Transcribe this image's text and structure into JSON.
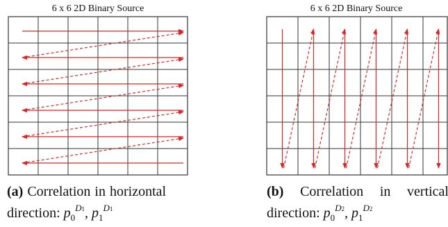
{
  "panel_a": {
    "title": "6 x 6 2D Binary Source",
    "caption_letter": "(a)",
    "caption_words_line1": [
      "Correlation",
      "in",
      "horizontal"
    ],
    "caption_line2_prefix": "direction:",
    "caption_math": "p_0^{D_1}, p_1^{D_1}",
    "rows": 6,
    "cols": 6,
    "scan_order": "horizontal"
  },
  "panel_b": {
    "title": "6 x 6 2D Binary Source",
    "caption_letter": "(b)",
    "caption_words_line1": [
      "Correlation",
      "in",
      "vertical"
    ],
    "caption_line2_prefix": "direction:",
    "caption_math": "p_0^{D_2}, p_1^{D_2}",
    "rows": 6,
    "cols": 6,
    "scan_order": "vertical"
  },
  "math": {
    "p": "p",
    "sub0": "0",
    "sub1": "1",
    "sep": ",",
    "D": "D",
    "D1_sub": "1",
    "D2_sub": "2"
  },
  "colors": {
    "grid": "#333333",
    "arrow": "#d62728"
  }
}
